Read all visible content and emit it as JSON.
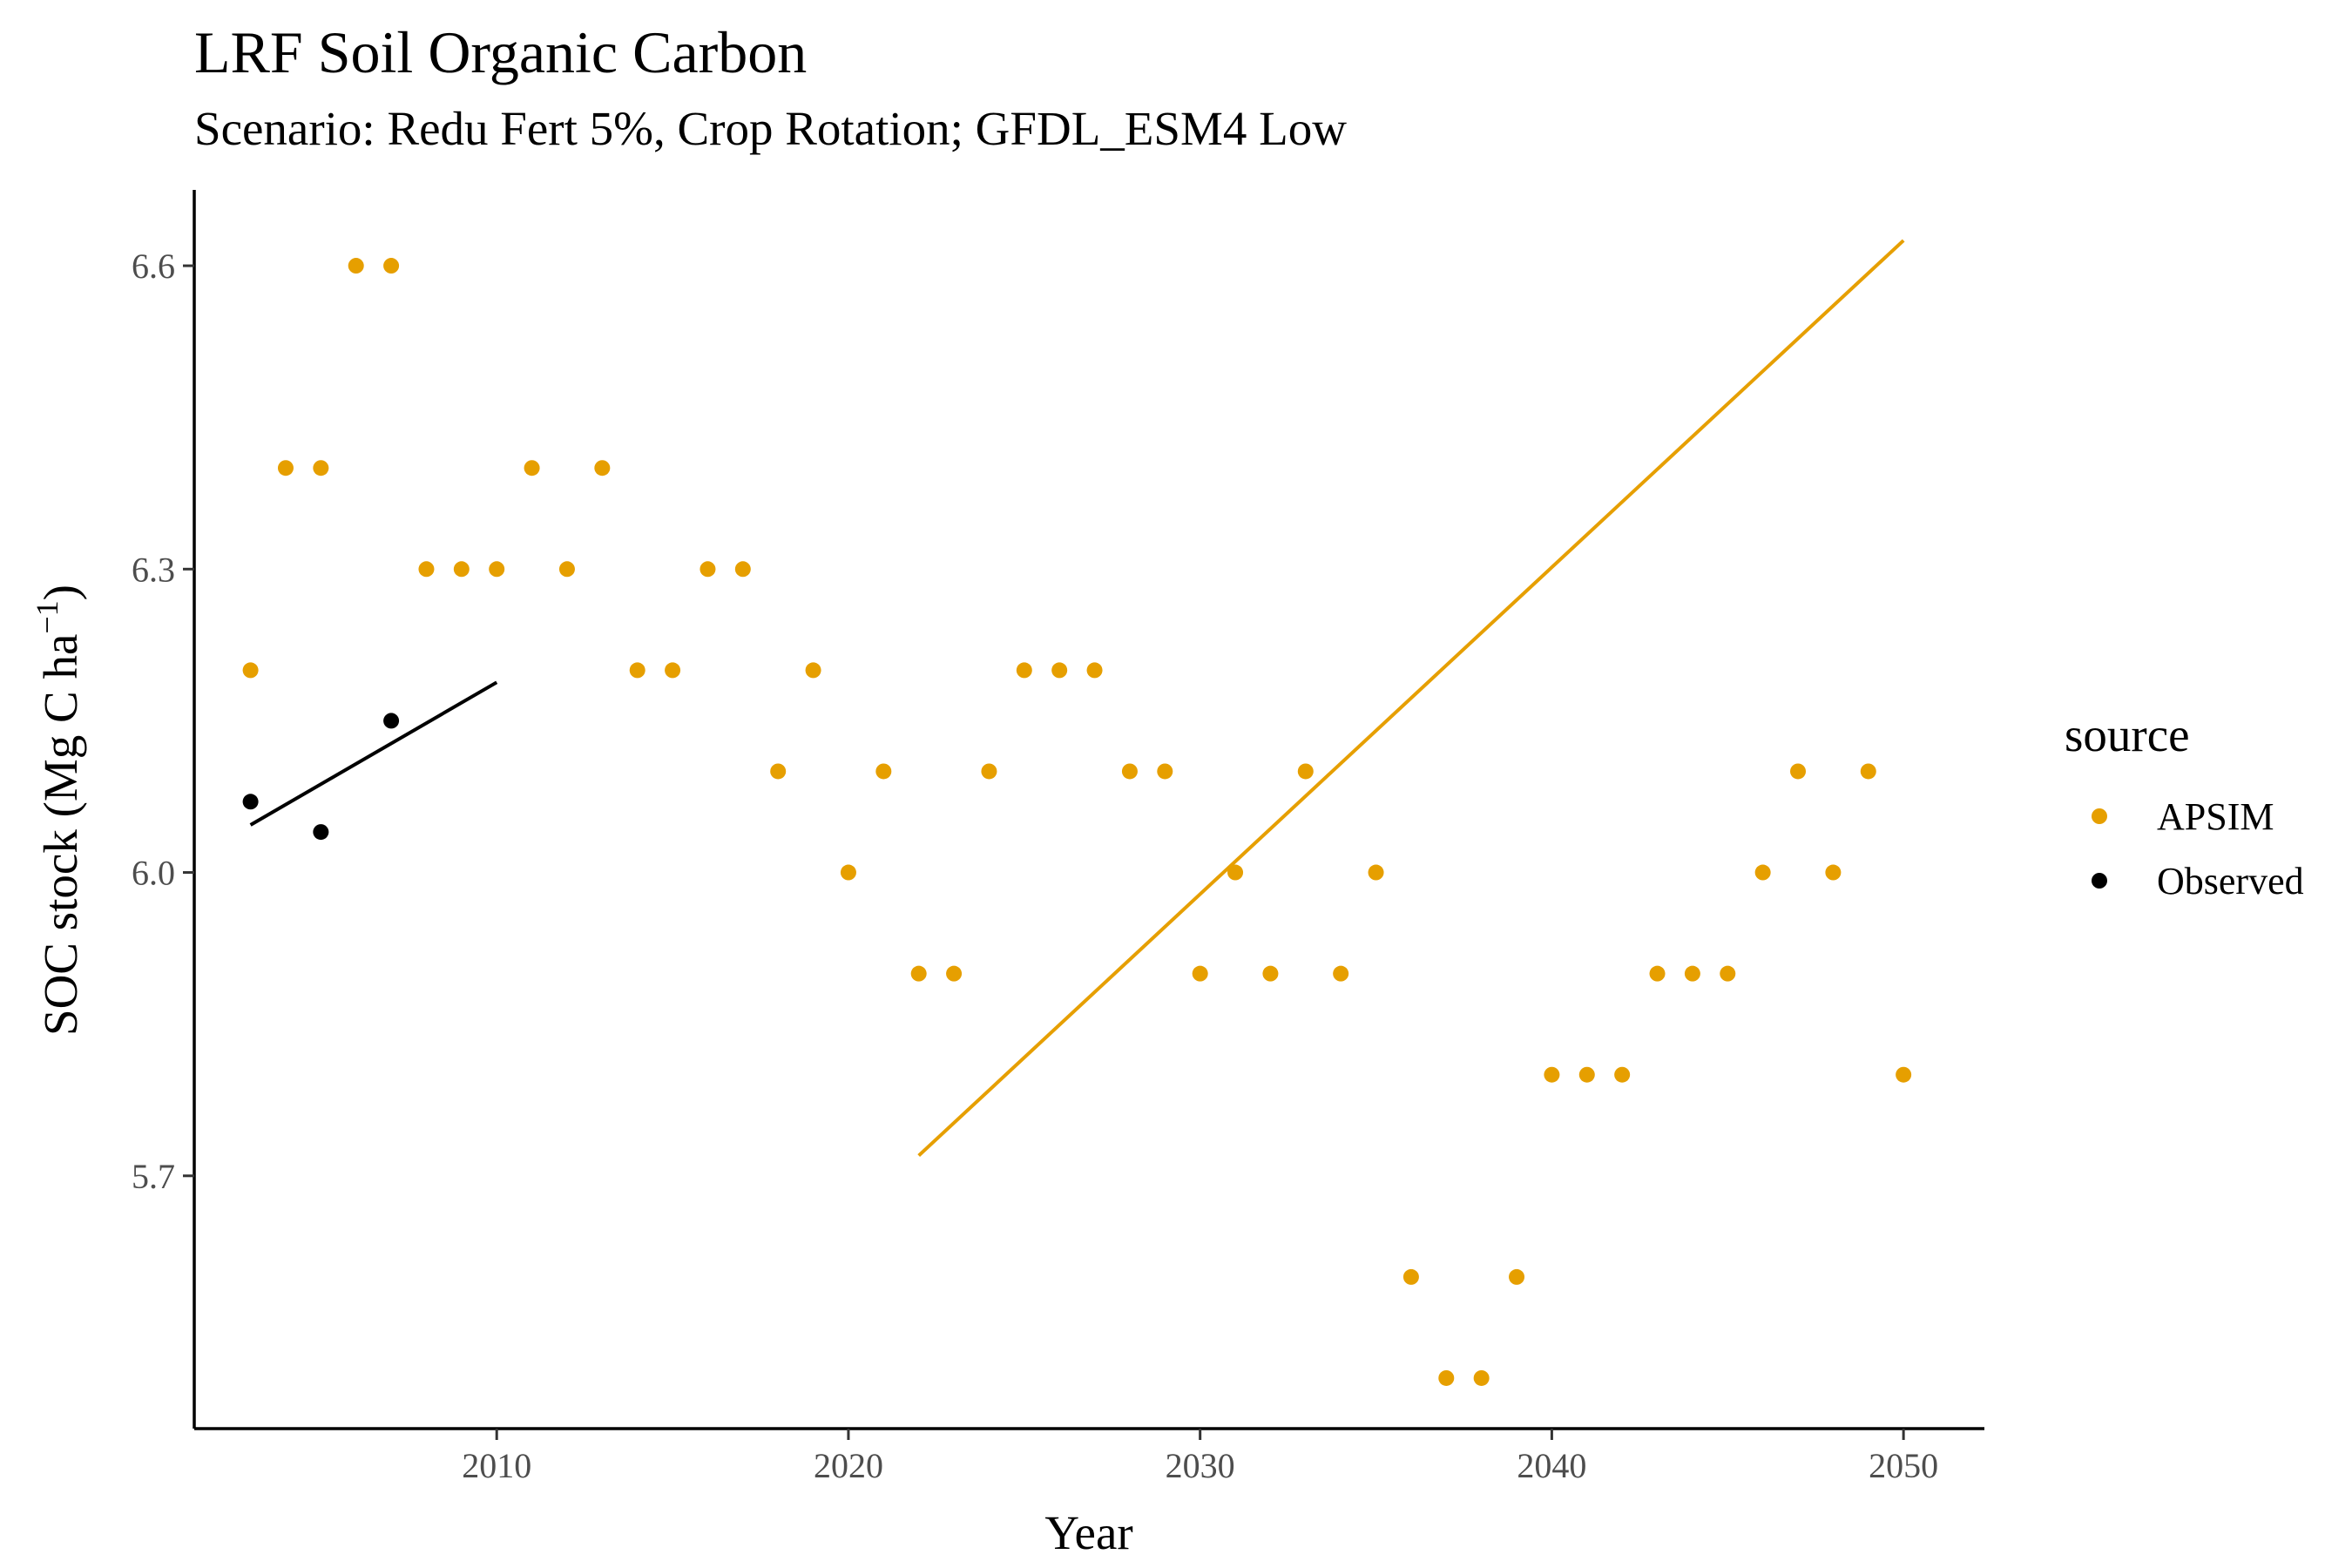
{
  "chart_data": {
    "type": "scatter",
    "title": "LRF Soil Organic Carbon",
    "subtitle": "Scenario: Redu Fert 5%, Crop Rotation; GFDL_ESM4 Low",
    "xlabel": "Year",
    "ylabel": "SOC stock (Mg C ha",
    "ylabel_superscript": "−1",
    "ylabel_close": ")",
    "xlim": [
      2001.4,
      2052.3
    ],
    "ylim": [
      5.45,
      6.675
    ],
    "x_ticks": [
      2010,
      2020,
      2030,
      2040,
      2050
    ],
    "x_tick_labels": [
      "2010",
      "2020",
      "2030",
      "2040",
      "2050"
    ],
    "y_ticks": [
      5.7,
      6.0,
      6.3,
      6.6
    ],
    "y_tick_labels": [
      "5.7",
      "6.0",
      "6.3",
      "6.6"
    ],
    "grid": false,
    "legend": {
      "title": "source",
      "position": "right",
      "entries": [
        {
          "label": "APSIM",
          "color": "#E69F00"
        },
        {
          "label": "Observed",
          "color": "#000000"
        }
      ]
    },
    "series": [
      {
        "name": "APSIM",
        "color": "#E69F00",
        "points": [
          [
            2003,
            6.2
          ],
          [
            2004,
            6.4
          ],
          [
            2005,
            6.4
          ],
          [
            2006,
            6.6
          ],
          [
            2007,
            6.6
          ],
          [
            2008,
            6.3
          ],
          [
            2009,
            6.3
          ],
          [
            2010,
            6.3
          ],
          [
            2011,
            6.4
          ],
          [
            2012,
            6.3
          ],
          [
            2013,
            6.4
          ],
          [
            2014,
            6.2
          ],
          [
            2015,
            6.2
          ],
          [
            2016,
            6.3
          ],
          [
            2017,
            6.3
          ],
          [
            2018,
            6.1
          ],
          [
            2019,
            6.2
          ],
          [
            2020,
            6.0
          ],
          [
            2021,
            6.1
          ],
          [
            2022,
            5.9
          ],
          [
            2023,
            5.9
          ],
          [
            2024,
            6.1
          ],
          [
            2025,
            6.2
          ],
          [
            2026,
            6.2
          ],
          [
            2027,
            6.2
          ],
          [
            2028,
            6.1
          ],
          [
            2029,
            6.1
          ],
          [
            2030,
            5.9
          ],
          [
            2031,
            6.0
          ],
          [
            2032,
            5.9
          ],
          [
            2033,
            6.1
          ],
          [
            2034,
            5.9
          ],
          [
            2035,
            6.0
          ],
          [
            2036,
            5.6
          ],
          [
            2037,
            5.5
          ],
          [
            2038,
            5.5
          ],
          [
            2039,
            5.6
          ],
          [
            2040,
            5.8
          ],
          [
            2041,
            5.8
          ],
          [
            2042,
            5.8
          ],
          [
            2043,
            5.9
          ],
          [
            2044,
            5.9
          ],
          [
            2045,
            5.9
          ],
          [
            2046,
            6.0
          ],
          [
            2047,
            6.1
          ],
          [
            2048,
            6.0
          ],
          [
            2049,
            6.1
          ],
          [
            2050,
            5.8
          ]
        ],
        "trend_line": [
          [
            2022,
            5.72
          ],
          [
            2050,
            6.625
          ]
        ]
      },
      {
        "name": "Observed",
        "color": "#000000",
        "points": [
          [
            2003,
            6.07
          ],
          [
            2005,
            6.04
          ],
          [
            2007,
            6.15
          ]
        ],
        "trend_line": [
          [
            2003,
            6.047
          ],
          [
            2010,
            6.188
          ]
        ]
      }
    ]
  }
}
